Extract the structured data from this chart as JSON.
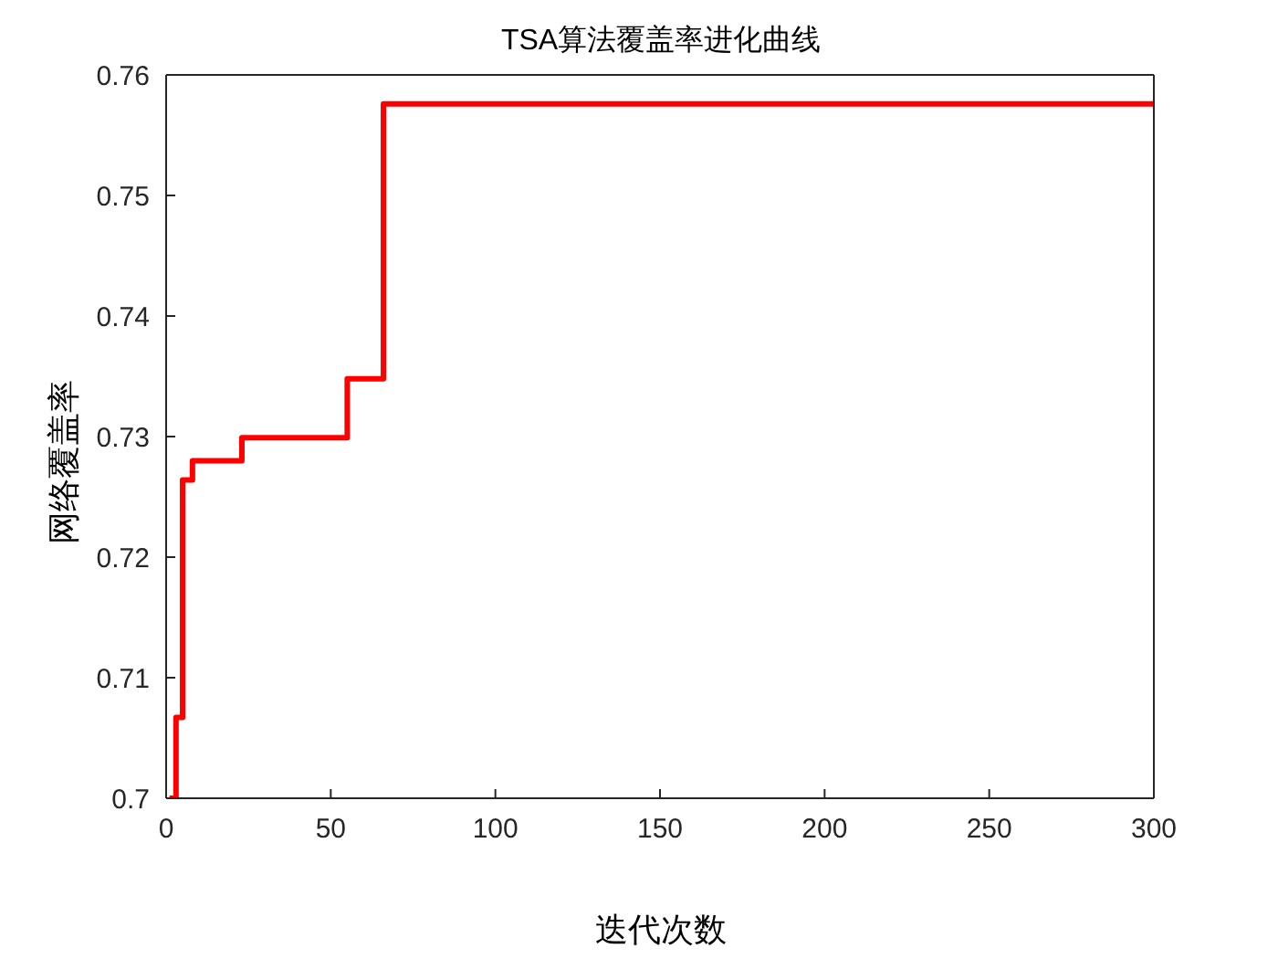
{
  "chart_data": {
    "type": "step",
    "title": "TSA算法覆盖率进化曲线",
    "xlabel": "迭代次数",
    "ylabel": "网络覆盖率",
    "x": [
      1,
      3,
      5,
      8,
      23,
      55,
      66,
      300
    ],
    "series": [
      {
        "color": "#ff0000",
        "values": [
          0.7,
          0.7067,
          0.7264,
          0.728,
          0.7299,
          0.7348,
          0.7576,
          0.7576
        ]
      }
    ],
    "xlim": [
      0,
      300
    ],
    "xticks": [
      0,
      50,
      100,
      150,
      200,
      250,
      300
    ],
    "ylim": [
      0.7,
      0.76
    ],
    "yticks": [
      0.7,
      0.71,
      0.72,
      0.73,
      0.74,
      0.75,
      0.76
    ],
    "grid": false
  }
}
